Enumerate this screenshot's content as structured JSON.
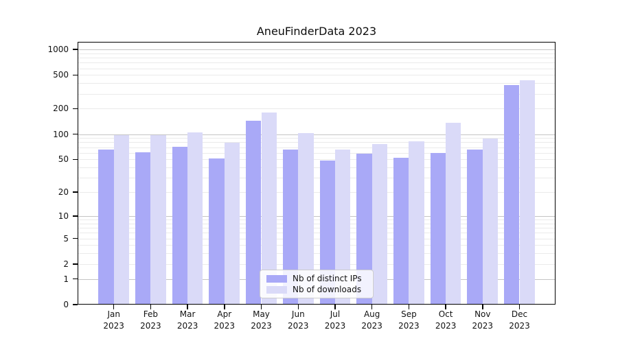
{
  "chart_data": {
    "type": "bar",
    "title": "AneuFinderData 2023",
    "categories": [
      "Jan 2023",
      "Feb 2023",
      "Mar 2023",
      "Apr 2023",
      "May 2023",
      "Jun 2023",
      "Jul 2023",
      "Aug 2023",
      "Sep 2023",
      "Oct 2023",
      "Nov 2023",
      "Dec 2023"
    ],
    "series": [
      {
        "name": "Nb of distinct IPs",
        "color": "#a9a9f7",
        "values": [
          65,
          61,
          71,
          51,
          145,
          66,
          48,
          59,
          52,
          60,
          65,
          378
        ]
      },
      {
        "name": "Nb of downloads",
        "color": "#dadaf8",
        "values": [
          98,
          98,
          105,
          79,
          180,
          102,
          66,
          76,
          82,
          136,
          88,
          430
        ]
      }
    ],
    "yscale": "log1p",
    "yticks": [
      0,
      1,
      2,
      5,
      10,
      20,
      50,
      100,
      200,
      500,
      1000
    ],
    "ylim": [
      0,
      1230
    ],
    "xlabel": "",
    "ylabel": "",
    "grid": true,
    "legend_position": "lower center inside plot",
    "colors": {
      "background": "#ffffff",
      "grid_major": "#c4c4c4",
      "grid_minor": "#eaeaea",
      "axis": "#000000"
    }
  }
}
